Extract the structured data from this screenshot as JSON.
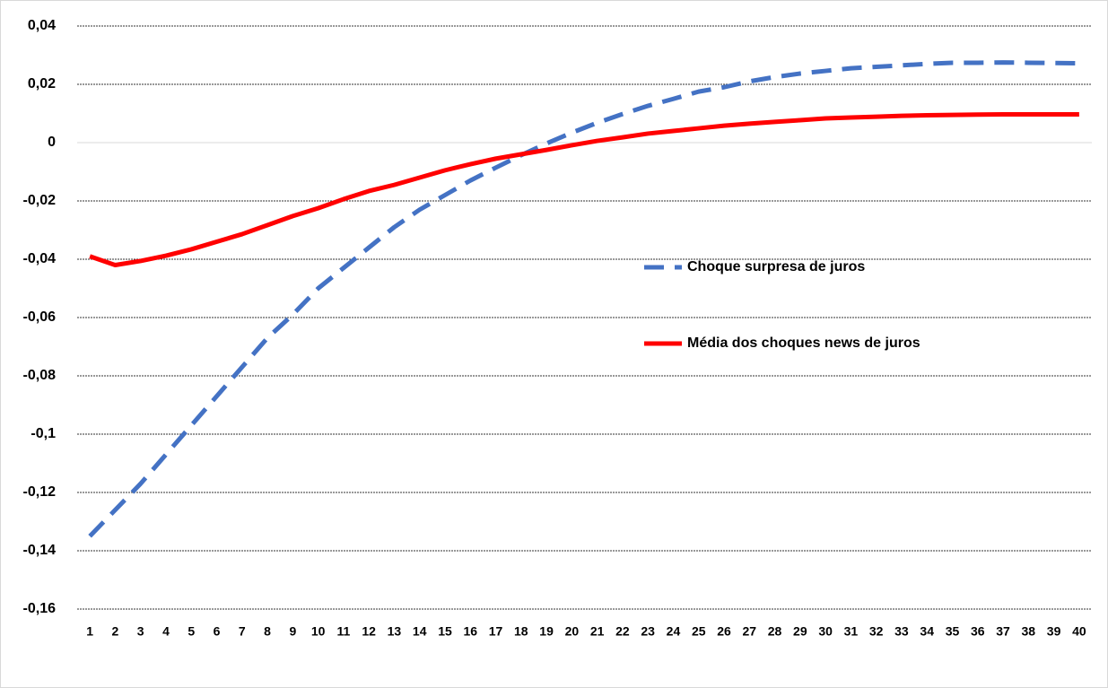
{
  "chart_data": {
    "type": "line",
    "categories": [
      1,
      2,
      3,
      4,
      5,
      6,
      7,
      8,
      9,
      10,
      11,
      12,
      13,
      14,
      15,
      16,
      17,
      18,
      19,
      20,
      21,
      22,
      23,
      24,
      25,
      26,
      27,
      28,
      29,
      30,
      31,
      32,
      33,
      34,
      35,
      36,
      37,
      38,
      39,
      40
    ],
    "series": [
      {
        "name": "Choque surpresa de juros",
        "color": "#4472c4",
        "dashed": true,
        "values": [
          -0.135,
          -0.126,
          -0.117,
          -0.107,
          -0.097,
          -0.087,
          -0.077,
          -0.067,
          -0.059,
          -0.05,
          -0.043,
          -0.036,
          -0.029,
          -0.023,
          -0.018,
          -0.013,
          -0.0086,
          -0.0043,
          -0.0003,
          0.0034,
          0.0068,
          0.0098,
          0.0126,
          0.015,
          0.0175,
          0.019,
          0.021,
          0.0225,
          0.0237,
          0.0246,
          0.0255,
          0.026,
          0.0265,
          0.027,
          0.0274,
          0.0274,
          0.0275,
          0.0274,
          0.0273,
          0.0272
        ]
      },
      {
        "name": "Média dos choques news de juros",
        "color": "#ff0000",
        "dashed": false,
        "values": [
          -0.039,
          -0.042,
          -0.0406,
          -0.0388,
          -0.0366,
          -0.034,
          -0.0314,
          -0.0283,
          -0.0252,
          -0.0225,
          -0.0194,
          -0.0166,
          -0.0145,
          -0.012,
          -0.0095,
          -0.0074,
          -0.0055,
          -0.004,
          -0.0025,
          -0.0009,
          0.0006,
          0.0018,
          0.0031,
          0.004,
          0.0049,
          0.0058,
          0.0065,
          0.0071,
          0.0077,
          0.0083,
          0.0086,
          0.0089,
          0.0092,
          0.0094,
          0.0095,
          0.0096,
          0.0097,
          0.0097,
          0.0097,
          0.0097
        ]
      }
    ],
    "ylim": [
      -0.16,
      0.04
    ],
    "yticks": [
      {
        "value": -0.16,
        "label": "-0,16"
      },
      {
        "value": -0.14,
        "label": "-0,14"
      },
      {
        "value": -0.12,
        "label": "-0,12"
      },
      {
        "value": -0.1,
        "label": "-0,1"
      },
      {
        "value": -0.08,
        "label": "-0,08"
      },
      {
        "value": -0.06,
        "label": "-0,06"
      },
      {
        "value": -0.04,
        "label": "-0,04"
      },
      {
        "value": -0.02,
        "label": "-0,02"
      },
      0,
      {
        "value": 0.02,
        "label": "0,02"
      },
      {
        "value": 0.04,
        "label": "0,04"
      }
    ],
    "grid": true
  }
}
